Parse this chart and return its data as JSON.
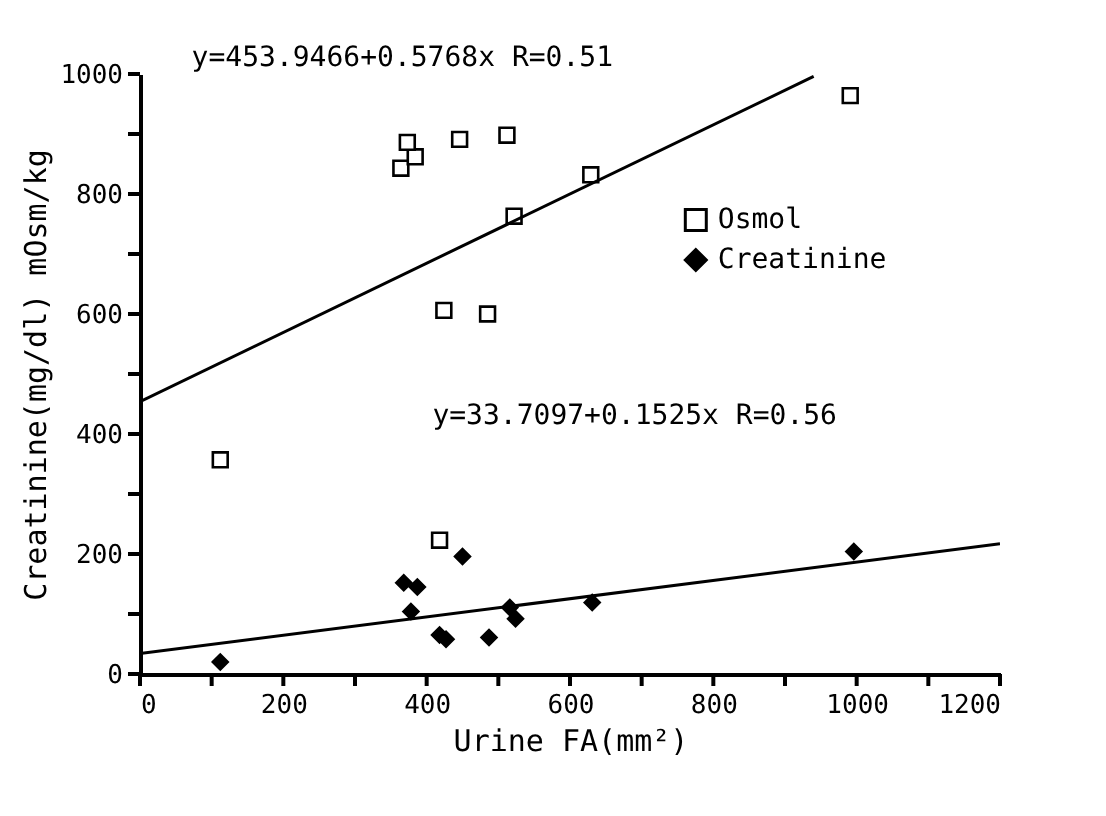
{
  "chart_data": {
    "type": "scatter",
    "xlabel": "Urine FA(mm²)",
    "ylabel": "Creatinine(mg/dl)   mOsm/kg",
    "annotations": [
      "y=453.9466+0.5768x R=0.51",
      "y=33.7097+0.1525x R=0.56"
    ],
    "series": [
      {
        "name": "Osmol",
        "marker": "square",
        "color": "#000000",
        "x": [
          364,
          384,
          373,
          446,
          512,
          629,
          522,
          424,
          485,
          991,
          112,
          418
        ],
        "values": [
          843,
          862,
          886,
          891,
          898,
          832,
          763,
          606,
          600,
          964,
          357,
          223
        ]
      },
      {
        "name": "Creatinine",
        "marker": "diamond",
        "color": "#000000",
        "x": [
          112,
          368,
          387,
          378,
          450,
          418,
          427,
          487,
          516,
          524,
          631,
          996
        ],
        "values": [
          20,
          152,
          145,
          104,
          196,
          65,
          58,
          61,
          111,
          92,
          119,
          204
        ]
      },
      {
        "type": "line",
        "color": "#000000",
        "line_style": "solid",
        "x": [
          0,
          940
        ],
        "values": [
          454,
          996
        ]
      },
      {
        "type": "line",
        "color": "#000000",
        "line_style": "solid",
        "x": [
          0,
          1200
        ],
        "values": [
          34,
          217
        ]
      }
    ],
    "xlim": [
      0,
      1200
    ],
    "ylim": [
      0,
      1000
    ],
    "xticks": [
      0,
      {
        "value": 100,
        "label": null
      },
      200,
      {
        "value": 300,
        "label": null
      },
      400,
      {
        "value": 500,
        "label": null
      },
      600,
      {
        "value": 700,
        "label": null
      },
      800,
      {
        "value": 900,
        "label": null
      },
      1000,
      {
        "value": 1100,
        "label": null
      },
      1200
    ],
    "yticks": [
      0,
      {
        "value": 100,
        "label": null
      },
      200,
      {
        "value": 300,
        "label": null
      },
      400,
      {
        "value": 500,
        "label": null
      },
      600,
      {
        "value": 700,
        "label": null
      },
      800,
      {
        "value": 900,
        "label": null
      },
      1000
    ],
    "grid": false,
    "legend": "right"
  }
}
